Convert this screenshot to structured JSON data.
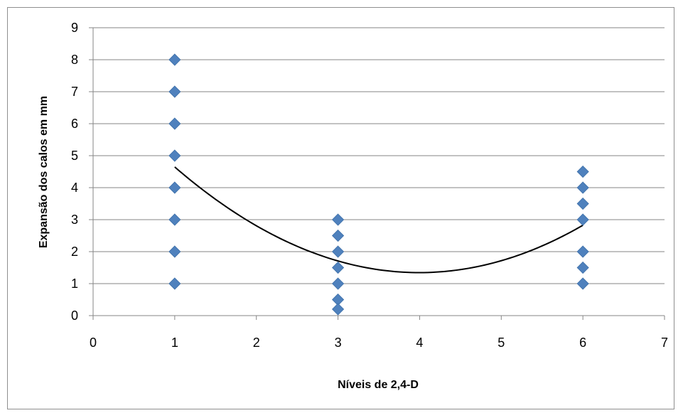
{
  "chart_data": {
    "type": "scatter",
    "xlabel": "Níveis de 2,4-D",
    "ylabel": "Expansão dos calos em mm",
    "xlim": [
      0,
      7
    ],
    "ylim": [
      0,
      9
    ],
    "x_ticks": [
      "0",
      "1",
      "2",
      "3",
      "4",
      "5",
      "6",
      "7"
    ],
    "y_ticks": [
      "0",
      "1",
      "2",
      "3",
      "4",
      "5",
      "6",
      "7",
      "8",
      "9"
    ],
    "grid": "horizontal",
    "marker_color": "#4f81bd",
    "trendline_color": "#000000",
    "series": [
      {
        "points": [
          {
            "x": 1,
            "y": 8
          },
          {
            "x": 1,
            "y": 7
          },
          {
            "x": 1,
            "y": 6
          },
          {
            "x": 1,
            "y": 5
          },
          {
            "x": 1,
            "y": 4
          },
          {
            "x": 1,
            "y": 3
          },
          {
            "x": 1,
            "y": 2
          },
          {
            "x": 1,
            "y": 1
          },
          {
            "x": 3,
            "y": 3
          },
          {
            "x": 3,
            "y": 2.5
          },
          {
            "x": 3,
            "y": 2
          },
          {
            "x": 3,
            "y": 1.5
          },
          {
            "x": 3,
            "y": 1
          },
          {
            "x": 3,
            "y": 0.5
          },
          {
            "x": 3,
            "y": 0.2
          },
          {
            "x": 6,
            "y": 4.5
          },
          {
            "x": 6,
            "y": 4
          },
          {
            "x": 6,
            "y": 3.5
          },
          {
            "x": 6,
            "y": 3
          },
          {
            "x": 6,
            "y": 2
          },
          {
            "x": 6,
            "y": 1.5
          },
          {
            "x": 6,
            "y": 1
          }
        ]
      }
    ],
    "trendline": {
      "type": "polynomial",
      "x_range": [
        1,
        6
      ],
      "points": [
        {
          "x": 1,
          "y": 4.62
        },
        {
          "x": 2,
          "y": 2.85
        },
        {
          "x": 3,
          "y": 1.72
        },
        {
          "x": 4,
          "y": 1.33
        },
        {
          "x": 5,
          "y": 1.68
        },
        {
          "x": 6,
          "y": 2.85
        }
      ]
    }
  }
}
